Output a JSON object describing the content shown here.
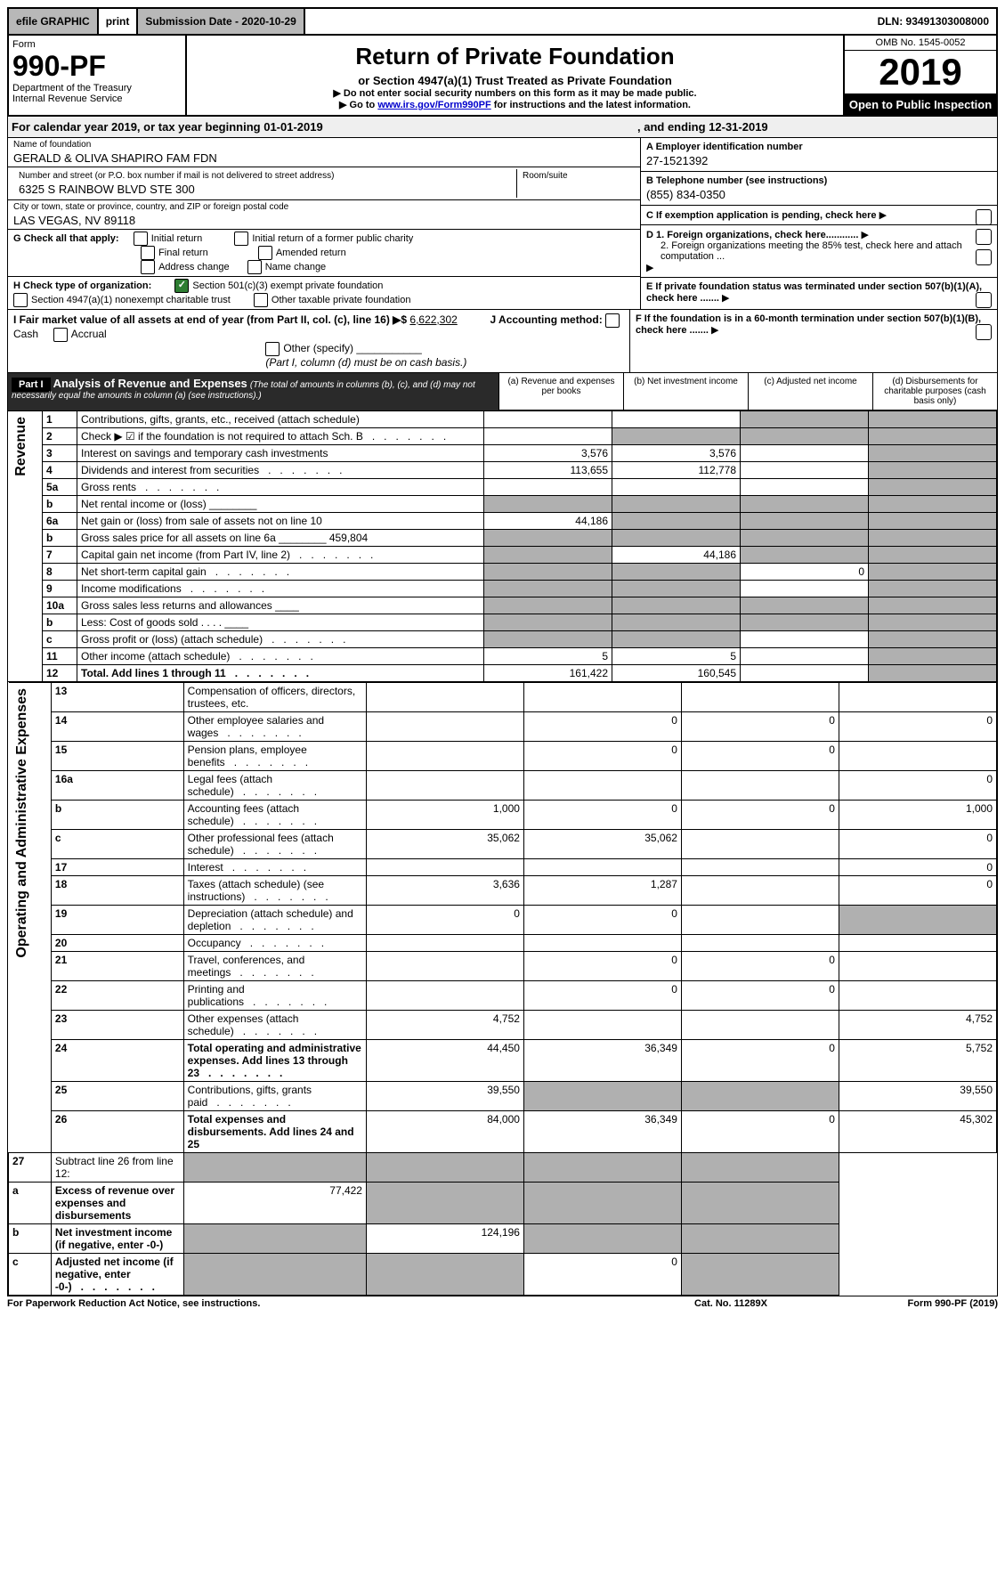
{
  "top_bar": {
    "efile": "efile GRAPHIC",
    "print": "print",
    "submission": "Submission Date - 2020-10-29",
    "dln": "DLN: 93491303008000"
  },
  "header": {
    "form_word": "Form",
    "form_num": "990-PF",
    "dept": "Department of the Treasury",
    "irs": "Internal Revenue Service",
    "title": "Return of Private Foundation",
    "subtitle": "or Section 4947(a)(1) Trust Treated as Private Foundation",
    "note1": "▶ Do not enter social security numbers on this form as it may be made public.",
    "note2_prefix": "▶ Go to ",
    "note2_link": "www.irs.gov/Form990PF",
    "note2_suffix": " for instructions and the latest information.",
    "omb": "OMB No. 1545-0052",
    "year": "2019",
    "open": "Open to Public Inspection"
  },
  "cal_year": {
    "text": "For calendar year 2019, or tax year beginning 01-01-2019",
    "ending": ", and ending 12-31-2019"
  },
  "name_block": {
    "name_label": "Name of foundation",
    "name": "GERALD & OLIVA SHAPIRO FAM FDN",
    "addr_label": "Number and street (or P.O. box number if mail is not delivered to street address)",
    "addr": "6325 S RAINBOW BLVD STE 300",
    "room_label": "Room/suite",
    "city_label": "City or town, state or province, country, and ZIP or foreign postal code",
    "city": "LAS VEGAS, NV  89118"
  },
  "ein_block": {
    "a_label": "A Employer identification number",
    "a_val": "27-1521392",
    "b_label": "B Telephone number (see instructions)",
    "b_val": "(855) 834-0350",
    "c_label": "C If exemption application is pending, check here",
    "d1": "D 1. Foreign organizations, check here............",
    "d2": "2. Foreign organizations meeting the 85% test, check here and attach computation ...",
    "e": "E  If private foundation status was terminated under section 507(b)(1)(A), check here .......",
    "f": "F  If the foundation is in a 60-month termination under section 507(b)(1)(B), check here ......."
  },
  "g_block": {
    "g_label": "G Check all that apply:",
    "opts": [
      "Initial return",
      "Initial return of a former public charity",
      "Final return",
      "Amended return",
      "Address change",
      "Name change"
    ]
  },
  "h_block": {
    "h_label": "H Check type of organization:",
    "h_opt1": "Section 501(c)(3) exempt private foundation",
    "h_opt2": "Section 4947(a)(1) nonexempt charitable trust",
    "h_opt3": "Other taxable private foundation"
  },
  "i_block": {
    "i_label": "I Fair market value of all assets at end of year (from Part II, col. (c), line 16) ▶$",
    "i_val": "6,622,302",
    "j_label": "J Accounting method:",
    "j_opts": [
      "Cash",
      "Accrual"
    ],
    "j_other": "Other (specify)",
    "j_note": "(Part I, column (d) must be on cash basis.)"
  },
  "part1": {
    "label": "Part I",
    "title": "Analysis of Revenue and Expenses",
    "note": "(The total of amounts in columns (b), (c), and (d) may not necessarily equal the amounts in column (a) (see instructions).)",
    "col_a": "(a)   Revenue and expenses per books",
    "col_b": "(b)  Net investment income",
    "col_c": "(c)  Adjusted net income",
    "col_d": "(d)  Disbursements for charitable purposes (cash basis only)"
  },
  "sections": {
    "revenue": "Revenue",
    "expenses": "Operating and Administrative Expenses"
  },
  "rows": [
    {
      "n": "1",
      "lbl": "Contributions, gifts, grants, etc., received (attach schedule)",
      "a": "",
      "b": "",
      "c": "",
      "d": "",
      "sa": false,
      "sb": false,
      "sc": true,
      "sd": true
    },
    {
      "n": "2",
      "lbl": "Check ▶ ☑ if the foundation is not required to attach Sch. B",
      "a": "",
      "b": "",
      "c": "",
      "d": "",
      "sa": false,
      "sb": true,
      "sc": true,
      "sd": true,
      "dots": true
    },
    {
      "n": "3",
      "lbl": "Interest on savings and temporary cash investments",
      "a": "3,576",
      "b": "3,576",
      "c": "",
      "d": "",
      "sd": true
    },
    {
      "n": "4",
      "lbl": "Dividends and interest from securities",
      "a": "113,655",
      "b": "112,778",
      "c": "",
      "d": "",
      "sd": true,
      "dots": true
    },
    {
      "n": "5a",
      "lbl": "Gross rents",
      "a": "",
      "b": "",
      "c": "",
      "d": "",
      "sd": true,
      "dots": true
    },
    {
      "n": "b",
      "lbl": "Net rental income or (loss)  ________",
      "a": "",
      "b": "",
      "c": "",
      "d": "",
      "sa": true,
      "sb": true,
      "sc": true,
      "sd": true
    },
    {
      "n": "6a",
      "lbl": "Net gain or (loss) from sale of assets not on line 10",
      "a": "44,186",
      "b": "",
      "c": "",
      "d": "",
      "sb": true,
      "sc": true,
      "sd": true
    },
    {
      "n": "b",
      "lbl": "Gross sales price for all assets on line 6a ________ 459,804",
      "a": "",
      "b": "",
      "c": "",
      "d": "",
      "sa": true,
      "sb": true,
      "sc": true,
      "sd": true
    },
    {
      "n": "7",
      "lbl": "Capital gain net income (from Part IV, line 2)",
      "a": "",
      "b": "44,186",
      "c": "",
      "d": "",
      "sa": true,
      "sc": true,
      "sd": true,
      "dots": true
    },
    {
      "n": "8",
      "lbl": "Net short-term capital gain",
      "a": "",
      "b": "",
      "c": "0",
      "d": "",
      "sa": true,
      "sb": true,
      "sd": true,
      "dots": true
    },
    {
      "n": "9",
      "lbl": "Income modifications",
      "a": "",
      "b": "",
      "c": "",
      "d": "",
      "sa": true,
      "sb": true,
      "sd": true,
      "dots": true
    },
    {
      "n": "10a",
      "lbl": "Gross sales less returns and allowances  ____",
      "a": "",
      "b": "",
      "c": "",
      "d": "",
      "sa": true,
      "sb": true,
      "sc": true,
      "sd": true
    },
    {
      "n": "b",
      "lbl": "Less: Cost of goods sold     .   .   .   .    ____",
      "a": "",
      "b": "",
      "c": "",
      "d": "",
      "sa": true,
      "sb": true,
      "sc": true,
      "sd": true
    },
    {
      "n": "c",
      "lbl": "Gross profit or (loss) (attach schedule)",
      "a": "",
      "b": "",
      "c": "",
      "d": "",
      "sa": true,
      "sb": true,
      "sd": true,
      "dots": true
    },
    {
      "n": "11",
      "lbl": "Other income (attach schedule)",
      "a": "5",
      "b": "5",
      "c": "",
      "d": "",
      "sd": true,
      "dots": true
    },
    {
      "n": "12",
      "lbl": "Total. Add lines 1 through 11",
      "a": "161,422",
      "b": "160,545",
      "c": "",
      "d": "",
      "sd": true,
      "bold": true,
      "dots": true
    }
  ],
  "exp_rows": [
    {
      "n": "13",
      "lbl": "Compensation of officers, directors, trustees, etc.",
      "a": "",
      "b": "",
      "c": "",
      "d": ""
    },
    {
      "n": "14",
      "lbl": "Other employee salaries and wages",
      "a": "",
      "b": "0",
      "c": "0",
      "d": "0",
      "dots": true
    },
    {
      "n": "15",
      "lbl": "Pension plans, employee benefits",
      "a": "",
      "b": "0",
      "c": "0",
      "d": "",
      "dots": true
    },
    {
      "n": "16a",
      "lbl": "Legal fees (attach schedule)",
      "a": "",
      "b": "",
      "c": "",
      "d": "0",
      "dots": true
    },
    {
      "n": "b",
      "lbl": "Accounting fees (attach schedule)",
      "a": "1,000",
      "b": "0",
      "c": "0",
      "d": "1,000",
      "dots": true
    },
    {
      "n": "c",
      "lbl": "Other professional fees (attach schedule)",
      "a": "35,062",
      "b": "35,062",
      "c": "",
      "d": "0",
      "dots": true
    },
    {
      "n": "17",
      "lbl": "Interest",
      "a": "",
      "b": "",
      "c": "",
      "d": "0",
      "dots": true
    },
    {
      "n": "18",
      "lbl": "Taxes (attach schedule) (see instructions)",
      "a": "3,636",
      "b": "1,287",
      "c": "",
      "d": "0",
      "dots": true
    },
    {
      "n": "19",
      "lbl": "Depreciation (attach schedule) and depletion",
      "a": "0",
      "b": "0",
      "c": "",
      "d": "",
      "sd": true,
      "dots": true
    },
    {
      "n": "20",
      "lbl": "Occupancy",
      "a": "",
      "b": "",
      "c": "",
      "d": "",
      "dots": true
    },
    {
      "n": "21",
      "lbl": "Travel, conferences, and meetings",
      "a": "",
      "b": "0",
      "c": "0",
      "d": "",
      "dots": true
    },
    {
      "n": "22",
      "lbl": "Printing and publications",
      "a": "",
      "b": "0",
      "c": "0",
      "d": "",
      "dots": true
    },
    {
      "n": "23",
      "lbl": "Other expenses (attach schedule)",
      "a": "4,752",
      "b": "",
      "c": "",
      "d": "4,752",
      "dots": true
    },
    {
      "n": "24",
      "lbl": "Total operating and administrative expenses. Add lines 13 through 23",
      "a": "44,450",
      "b": "36,349",
      "c": "0",
      "d": "5,752",
      "bold": true,
      "dots": true
    },
    {
      "n": "25",
      "lbl": "Contributions, gifts, grants paid",
      "a": "39,550",
      "b": "",
      "c": "",
      "d": "39,550",
      "sb": true,
      "sc": true,
      "dots": true
    },
    {
      "n": "26",
      "lbl": "Total expenses and disbursements. Add lines 24 and 25",
      "a": "84,000",
      "b": "36,349",
      "c": "0",
      "d": "45,302",
      "bold": true
    },
    {
      "n": "27",
      "lbl": "Subtract line 26 from line 12:",
      "a": "",
      "b": "",
      "c": "",
      "d": "",
      "sa": true,
      "sb": true,
      "sc": true,
      "sd": true,
      "notab": true
    },
    {
      "n": "a",
      "lbl": "Excess of revenue over expenses and disbursements",
      "a": "77,422",
      "b": "",
      "c": "",
      "d": "",
      "sb": true,
      "sc": true,
      "sd": true,
      "bold": true,
      "notab": true
    },
    {
      "n": "b",
      "lbl": "Net investment income (if negative, enter -0-)",
      "a": "",
      "b": "124,196",
      "c": "",
      "d": "",
      "sa": true,
      "sc": true,
      "sd": true,
      "bold": true,
      "notab": true
    },
    {
      "n": "c",
      "lbl": "Adjusted net income (if negative, enter -0-)",
      "a": "",
      "b": "",
      "c": "0",
      "d": "",
      "sa": true,
      "sb": true,
      "sd": true,
      "bold": true,
      "dots": true,
      "notab": true
    }
  ],
  "footer": {
    "left": "For Paperwork Reduction Act Notice, see instructions.",
    "center": "Cat. No. 11289X",
    "right": "Form 990-PF (2019)"
  }
}
